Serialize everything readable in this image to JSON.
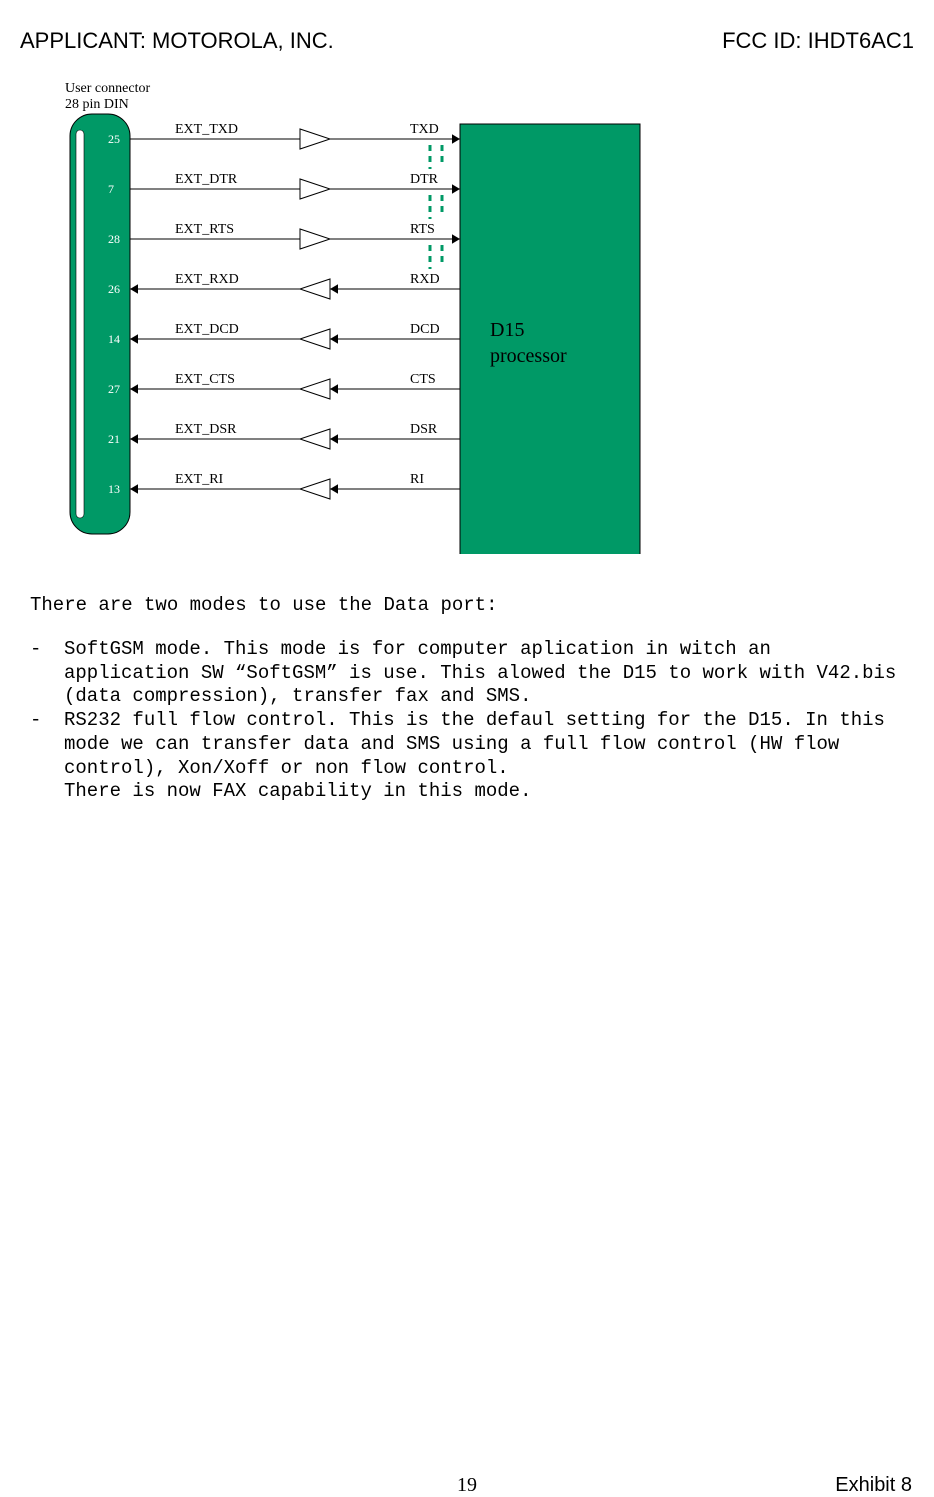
{
  "header": {
    "applicant_label": "APPLICANT:  MOTOROLA, INC.",
    "fcc_label": "FCC ID: IHDT6AC1"
  },
  "diagram": {
    "connector_label_1": "User connector",
    "connector_label_2": "28 pin DIN",
    "processor_label_1": "D15",
    "processor_label_2": "processor",
    "colors": {
      "teal": "#009966",
      "black": "#000000",
      "white": "#ffffff"
    },
    "font_family": "Times New Roman, serif",
    "label_fontsize": 14,
    "proc_fontsize": 20,
    "connector_fontsize": 14,
    "signals": [
      {
        "pin": "25",
        "ext": "EXT_TXD",
        "proc": "TXD",
        "dir": "right",
        "dashed": true
      },
      {
        "pin": "7",
        "ext": "EXT_DTR",
        "proc": "DTR",
        "dir": "right",
        "dashed": true
      },
      {
        "pin": "28",
        "ext": "EXT_RTS",
        "proc": "RTS",
        "dir": "right",
        "dashed": true
      },
      {
        "pin": "26",
        "ext": "EXT_RXD",
        "proc": "RXD",
        "dir": "left",
        "dashed": false
      },
      {
        "pin": "14",
        "ext": "EXT_DCD",
        "proc": "DCD",
        "dir": "left",
        "dashed": false
      },
      {
        "pin": "27",
        "ext": "EXT_CTS",
        "proc": "CTS",
        "dir": "left",
        "dashed": false
      },
      {
        "pin": "21",
        "ext": "EXT_DSR",
        "proc": "DSR",
        "dir": "left",
        "dashed": false
      },
      {
        "pin": "13",
        "ext": "EXT_RI",
        "proc": "RI",
        "dir": "left",
        "dashed": false
      }
    ]
  },
  "body": {
    "para1": "There are two modes to use the Data  port:",
    "item1": "SoftGSM mode. This mode is for computer aplication in witch an application SW “SoftGSM” is use. This alowed the D15 to work  with V42.bis (data compression), transfer fax and SMS.",
    "item2": "RS232 full flow control. This is the defaul setting for the D15. In this mode we can transfer data and SMS using a full flow control (HW flow control), Xon/Xoff or non flow control.",
    "item2b": "There is now FAX capability in this mode.",
    "dash": "-"
  },
  "footer": {
    "page": "19",
    "exhibit": "Exhibit 8"
  }
}
